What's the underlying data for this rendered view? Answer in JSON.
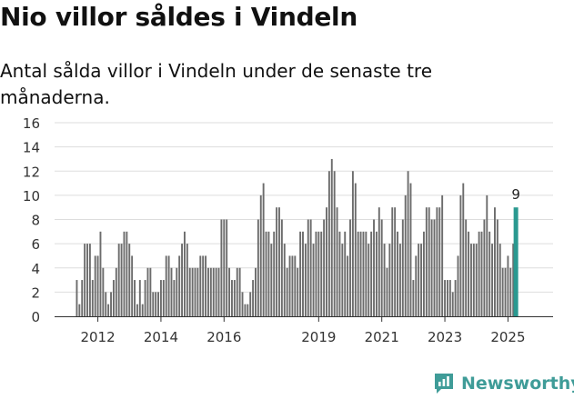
{
  "title": "Nio villor såldes i Vindeln",
  "subtitle": "Antal sålda villor i Vindeln under de senaste tre månaderna.",
  "brand": {
    "name": "Newsworthy",
    "icon": "newsworthy-logo-icon"
  },
  "colors": {
    "bar": "#6c6c6c",
    "highlight": "#2a9990",
    "brand": "#3f9c98",
    "grid": "#dddddd"
  },
  "chart_data": {
    "type": "bar",
    "title": "Nio villor såldes i Vindeln",
    "xlabel": "",
    "ylabel": "",
    "ylim": [
      0,
      16
    ],
    "yticks": [
      "0",
      "2",
      "4",
      "6",
      "8",
      "10",
      "12",
      "14",
      "16"
    ],
    "xticks": [
      {
        "label": "2012",
        "index": 8
      },
      {
        "label": "2014",
        "index": 32
      },
      {
        "label": "2016",
        "index": 56
      },
      {
        "label": "2019",
        "index": 92
      },
      {
        "label": "2021",
        "index": 116
      },
      {
        "label": "2023",
        "index": 140
      },
      {
        "label": "2025",
        "index": 164
      }
    ],
    "grid": true,
    "frequency": "monthly, rolling three-month sum",
    "highlight_label": "9",
    "values": [
      3,
      1,
      3,
      6,
      6,
      6,
      3,
      5,
      5,
      7,
      4,
      2,
      1,
      2,
      3,
      4,
      6,
      6,
      7,
      7,
      6,
      5,
      3,
      1,
      3,
      1,
      3,
      4,
      4,
      2,
      2,
      2,
      3,
      3,
      5,
      5,
      4,
      3,
      4,
      5,
      6,
      7,
      6,
      4,
      4,
      4,
      4,
      5,
      5,
      5,
      4,
      4,
      4,
      4,
      4,
      8,
      8,
      8,
      4,
      3,
      3,
      4,
      4,
      2,
      1,
      1,
      2,
      3,
      4,
      8,
      10,
      11,
      7,
      7,
      6,
      7,
      9,
      9,
      8,
      6,
      4,
      5,
      5,
      5,
      4,
      7,
      7,
      6,
      8,
      8,
      6,
      7,
      7,
      7,
      8,
      9,
      12,
      13,
      12,
      9,
      7,
      6,
      7,
      5,
      8,
      12,
      11,
      7,
      7,
      7,
      7,
      6,
      7,
      8,
      7,
      9,
      8,
      6,
      4,
      6,
      9,
      9,
      7,
      6,
      8,
      10,
      12,
      11,
      3,
      5,
      6,
      6,
      7,
      9,
      9,
      8,
      8,
      9,
      9,
      10,
      3,
      3,
      3,
      2,
      3,
      5,
      10,
      11,
      8,
      7,
      6,
      6,
      6,
      7,
      7,
      8,
      10,
      7,
      6,
      9,
      8,
      6,
      4,
      4,
      5,
      4,
      6,
      9
    ]
  }
}
